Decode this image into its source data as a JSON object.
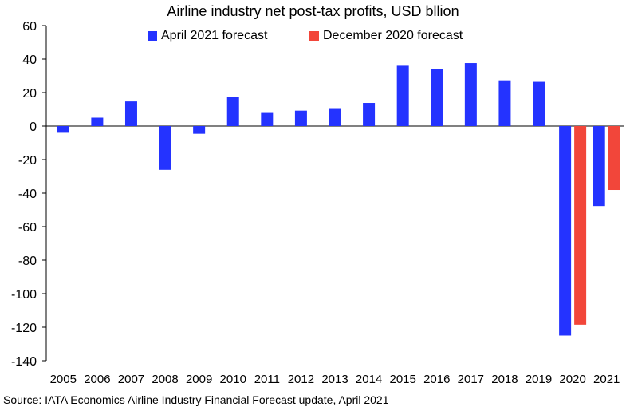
{
  "chart_data": {
    "type": "bar",
    "title": "Airline industry net post-tax profits, USD bllion",
    "xlabel": "",
    "ylabel": "",
    "categories": [
      "2005",
      "2006",
      "2007",
      "2008",
      "2009",
      "2010",
      "2011",
      "2012",
      "2013",
      "2014",
      "2015",
      "2016",
      "2017",
      "2018",
      "2019",
      "2020",
      "2021"
    ],
    "series": [
      {
        "name": "April 2021 forecast",
        "color": "#2433ff",
        "values": [
          -4,
          5,
          14.7,
          -26.1,
          -4.6,
          17.3,
          8.3,
          9.2,
          10.7,
          13.8,
          36,
          34.2,
          37.6,
          27.3,
          26.4,
          -125,
          -47.7
        ]
      },
      {
        "name": "December 2020 forecast",
        "color": "#f2463a",
        "values": [
          null,
          null,
          null,
          null,
          null,
          null,
          null,
          null,
          null,
          null,
          null,
          null,
          null,
          null,
          null,
          -118.5,
          -38.1
        ]
      }
    ],
    "ylim": [
      -140,
      60
    ],
    "yticks": [
      "60",
      "40",
      "20",
      "0",
      "-20",
      "-40",
      "-60",
      "-80",
      "-100",
      "-120",
      "-140"
    ],
    "grid": false,
    "legend_position": "top"
  },
  "source": "Source: IATA Economics Airline Industry Financial Forecast update, April 2021"
}
